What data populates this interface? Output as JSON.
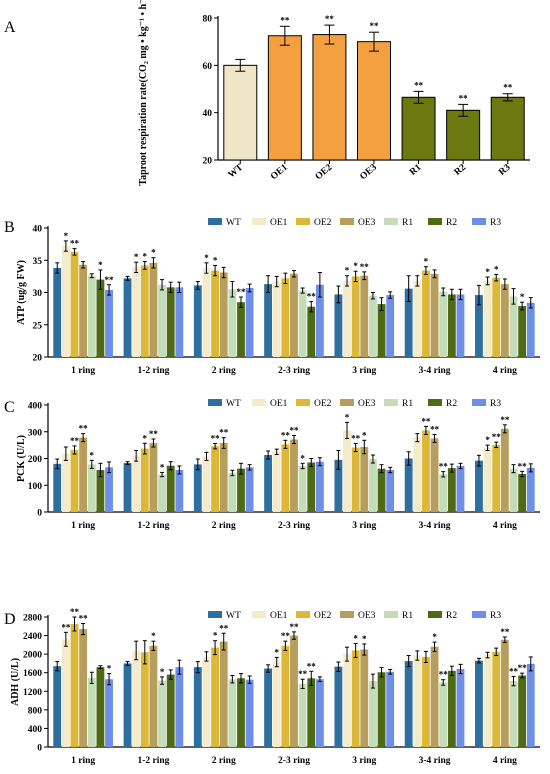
{
  "chart_data": [
    {
      "panel": "A",
      "type": "bar",
      "ylabel": "Taproot respiration rate(CO₂ mg • kg⁻¹ • h⁻¹)",
      "ylim": [
        20,
        80
      ],
      "yticks": [
        20,
        40,
        60,
        80
      ],
      "categories": [
        "WT",
        "OE1",
        "OE2",
        "OE3",
        "R1",
        "R2",
        "R3"
      ],
      "values": [
        60,
        72.5,
        73,
        70,
        46.5,
        41,
        46.5
      ],
      "errors": [
        2.5,
        4,
        4,
        4,
        2.5,
        2.5,
        1.5
      ],
      "significance": [
        "",
        "**",
        "**",
        "**",
        "**",
        "**",
        "**"
      ],
      "colors": [
        "#efe6c7",
        "#f5a040",
        "#f5a040",
        "#f5a040",
        "#6a7a10",
        "#6a7a10",
        "#6a7a10"
      ],
      "legend": "none",
      "grid": false
    },
    {
      "panel": "B",
      "type": "bar",
      "ylabel": "ATP (ug/g FW)",
      "ylim": [
        20,
        40
      ],
      "yticks": [
        20,
        25,
        30,
        35,
        40
      ],
      "categories": [
        "1 ring",
        "1-2 ring",
        "2 ring",
        "2-3 ring",
        "3 ring",
        "3-4 ring",
        "4 ring"
      ],
      "legend": "top",
      "grid": false,
      "series": [
        {
          "name": "WT",
          "color": "#2e6f9e",
          "values": [
            33.8,
            32.2,
            31.1,
            31.3,
            29.7,
            30.6,
            29.6
          ],
          "errors": [
            0.8,
            0.3,
            0.6,
            1.3,
            1.3,
            2.0,
            1.5
          ],
          "sig": [
            "",
            "",
            "",
            "",
            "",
            "",
            ""
          ]
        },
        {
          "name": "OE1",
          "color": "#f3ebcc",
          "values": [
            37.2,
            33.9,
            33.8,
            31.7,
            31.8,
            31.8,
            31.8
          ],
          "errors": [
            0.8,
            0.8,
            0.8,
            0.8,
            0.8,
            0.8,
            0.6
          ],
          "sig": [
            "*",
            "*",
            "*",
            "",
            "*",
            "",
            "*"
          ]
        },
        {
          "name": "OE2",
          "color": "#dcb838",
          "values": [
            36.3,
            34.2,
            33.4,
            32.2,
            32.5,
            33.4,
            32.3
          ],
          "errors": [
            0.5,
            0.6,
            0.8,
            0.8,
            0.8,
            0.6,
            0.5
          ],
          "sig": [
            "**",
            "*",
            "*",
            "",
            "*",
            "*",
            "*"
          ]
        },
        {
          "name": "OE3",
          "color": "#b89e5c",
          "values": [
            34.3,
            34.6,
            33.1,
            32.9,
            32.6,
            32.9,
            31.3
          ],
          "errors": [
            0.5,
            0.8,
            0.8,
            0.5,
            0.6,
            0.6,
            0.8
          ],
          "sig": [
            "",
            "*",
            "",
            "",
            "**",
            "",
            ""
          ]
        },
        {
          "name": "R1",
          "color": "#c4dcb8",
          "values": [
            32.6,
            31.2,
            30.5,
            30.3,
            29.5,
            30.1,
            29.4
          ],
          "errors": [
            0.3,
            0.8,
            1.2,
            0.4,
            0.5,
            0.6,
            1.2
          ],
          "sig": [
            "",
            "",
            "",
            "",
            "",
            "",
            ""
          ]
        },
        {
          "name": "R2",
          "color": "#4f6a14",
          "values": [
            32.0,
            30.8,
            28.5,
            27.8,
            28.2,
            29.7,
            27.9
          ],
          "errors": [
            1.5,
            0.8,
            0.8,
            0.8,
            1.0,
            0.8,
            0.6
          ],
          "sig": [
            "*",
            "",
            "**",
            "**",
            "",
            "",
            "*"
          ]
        },
        {
          "name": "R3",
          "color": "#6f8ee8",
          "values": [
            30.4,
            30.8,
            30.7,
            31.2,
            29.6,
            29.7,
            28.4
          ],
          "errors": [
            0.8,
            0.8,
            0.6,
            1.9,
            0.5,
            0.8,
            0.8
          ],
          "sig": [
            "**",
            "",
            "",
            "",
            "",
            "",
            ""
          ]
        }
      ]
    },
    {
      "panel": "C",
      "type": "bar",
      "ylabel": "PCK (U/L)",
      "ylim": [
        0,
        400
      ],
      "yticks": [
        0,
        100,
        200,
        300,
        400
      ],
      "categories": [
        "1 ring",
        "1-2 ring",
        "2 ring",
        "2-3 ring",
        "3 ring",
        "3-4 ring",
        "4 ring"
      ],
      "legend": "top",
      "grid": false,
      "series": [
        {
          "name": "WT",
          "color": "#2e6f9e",
          "values": [
            180,
            183,
            178,
            213,
            195,
            200,
            192
          ],
          "errors": [
            18,
            5,
            20,
            15,
            35,
            25,
            20
          ],
          "sig": [
            "",
            "",
            "",
            "",
            "",
            "",
            ""
          ]
        },
        {
          "name": "OE1",
          "color": "#f3ebcc",
          "values": [
            218,
            210,
            208,
            225,
            305,
            278,
            240
          ],
          "errors": [
            25,
            20,
            15,
            10,
            30,
            15,
            10
          ],
          "sig": [
            "",
            "",
            "",
            "",
            "*",
            "",
            "*"
          ]
        },
        {
          "name": "OE2",
          "color": "#dcb838",
          "values": [
            232,
            237,
            246,
            253,
            241,
            305,
            251
          ],
          "errors": [
            15,
            20,
            10,
            15,
            15,
            15,
            10
          ],
          "sig": [
            "**",
            "*",
            "**",
            "**",
            "**",
            "**",
            "**"
          ]
        },
        {
          "name": "OE3",
          "color": "#b89e5c",
          "values": [
            278,
            258,
            258,
            271,
            243,
            275,
            311
          ],
          "errors": [
            15,
            15,
            20,
            15,
            25,
            15,
            15
          ],
          "sig": [
            "**",
            "**",
            "**",
            "**",
            "*",
            "**",
            "**"
          ]
        },
        {
          "name": "R1",
          "color": "#c4dcb8",
          "values": [
            178,
            140,
            146,
            172,
            198,
            141,
            162
          ],
          "errors": [
            15,
            8,
            10,
            10,
            15,
            10,
            15
          ],
          "sig": [
            "*",
            "*",
            "",
            "*",
            "",
            "**",
            ""
          ]
        },
        {
          "name": "R2",
          "color": "#4f6a14",
          "values": [
            157,
            173,
            162,
            185,
            162,
            164,
            142
          ],
          "errors": [
            25,
            15,
            20,
            15,
            15,
            15,
            10
          ],
          "sig": [
            "",
            "",
            "",
            "",
            "",
            "",
            "**"
          ]
        },
        {
          "name": "R3",
          "color": "#6f8ee8",
          "values": [
            167,
            157,
            167,
            188,
            157,
            172,
            165
          ],
          "errors": [
            20,
            15,
            10,
            15,
            10,
            10,
            15
          ],
          "sig": [
            "",
            "",
            "",
            "",
            "",
            "",
            ""
          ]
        }
      ]
    },
    {
      "panel": "D",
      "type": "bar",
      "ylabel": "ADH (U/L)",
      "ylim": [
        0,
        2800
      ],
      "yticks": [
        0,
        400,
        800,
        1200,
        1600,
        2000,
        2400,
        2800
      ],
      "categories": [
        "1 ring",
        "1-2 ring",
        "2 ring",
        "2-3 ring",
        "3 ring",
        "3-4 ring",
        "4 ring"
      ],
      "legend": "top",
      "grid": false,
      "series": [
        {
          "name": "WT",
          "color": "#2e6f9e",
          "values": [
            1740,
            1800,
            1720,
            1690,
            1730,
            1850,
            1860
          ],
          "errors": [
            100,
            40,
            120,
            80,
            100,
            120,
            50
          ],
          "sig": [
            "",
            "",
            "",
            "",
            "",
            "",
            ""
          ]
        },
        {
          "name": "OE1",
          "color": "#f3ebcc",
          "values": [
            2320,
            2080,
            1950,
            1830,
            2000,
            1970,
            1980
          ],
          "errors": [
            150,
            200,
            100,
            100,
            150,
            100,
            60
          ],
          "sig": [
            "**",
            "",
            "",
            "*",
            "",
            "",
            ""
          ]
        },
        {
          "name": "OE2",
          "color": "#dcb838",
          "values": [
            2650,
            2040,
            2140,
            2180,
            2080,
            1940,
            2050
          ],
          "errors": [
            150,
            250,
            150,
            100,
            150,
            120,
            80
          ],
          "sig": [
            "**",
            "",
            "*",
            "**",
            "*",
            "",
            ""
          ]
        },
        {
          "name": "OE3",
          "color": "#b89e5c",
          "values": [
            2540,
            2180,
            2270,
            2400,
            2100,
            2160,
            2310
          ],
          "errors": [
            120,
            100,
            180,
            80,
            120,
            100,
            60
          ],
          "sig": [
            "**",
            "*",
            "**",
            "**",
            "*",
            "*",
            "**"
          ]
        },
        {
          "name": "R1",
          "color": "#c4dcb8",
          "values": [
            1490,
            1430,
            1460,
            1360,
            1420,
            1390,
            1420
          ],
          "errors": [
            120,
            80,
            80,
            100,
            150,
            60,
            100
          ],
          "sig": [
            "",
            "*",
            "",
            "**",
            "",
            "**",
            "**"
          ]
        },
        {
          "name": "R2",
          "color": "#4f6a14",
          "values": [
            1720,
            1560,
            1480,
            1480,
            1610,
            1640,
            1540
          ],
          "errors": [
            30,
            100,
            100,
            150,
            100,
            100,
            50
          ],
          "sig": [
            "",
            "",
            "",
            "**",
            "",
            "",
            "**"
          ]
        },
        {
          "name": "R3",
          "color": "#6f8ee8",
          "values": [
            1460,
            1720,
            1450,
            1460,
            1620,
            1680,
            1790
          ],
          "errors": [
            120,
            150,
            80,
            50,
            50,
            100,
            150
          ],
          "sig": [
            "*",
            "",
            "",
            "",
            "",
            "",
            ""
          ]
        }
      ]
    }
  ]
}
